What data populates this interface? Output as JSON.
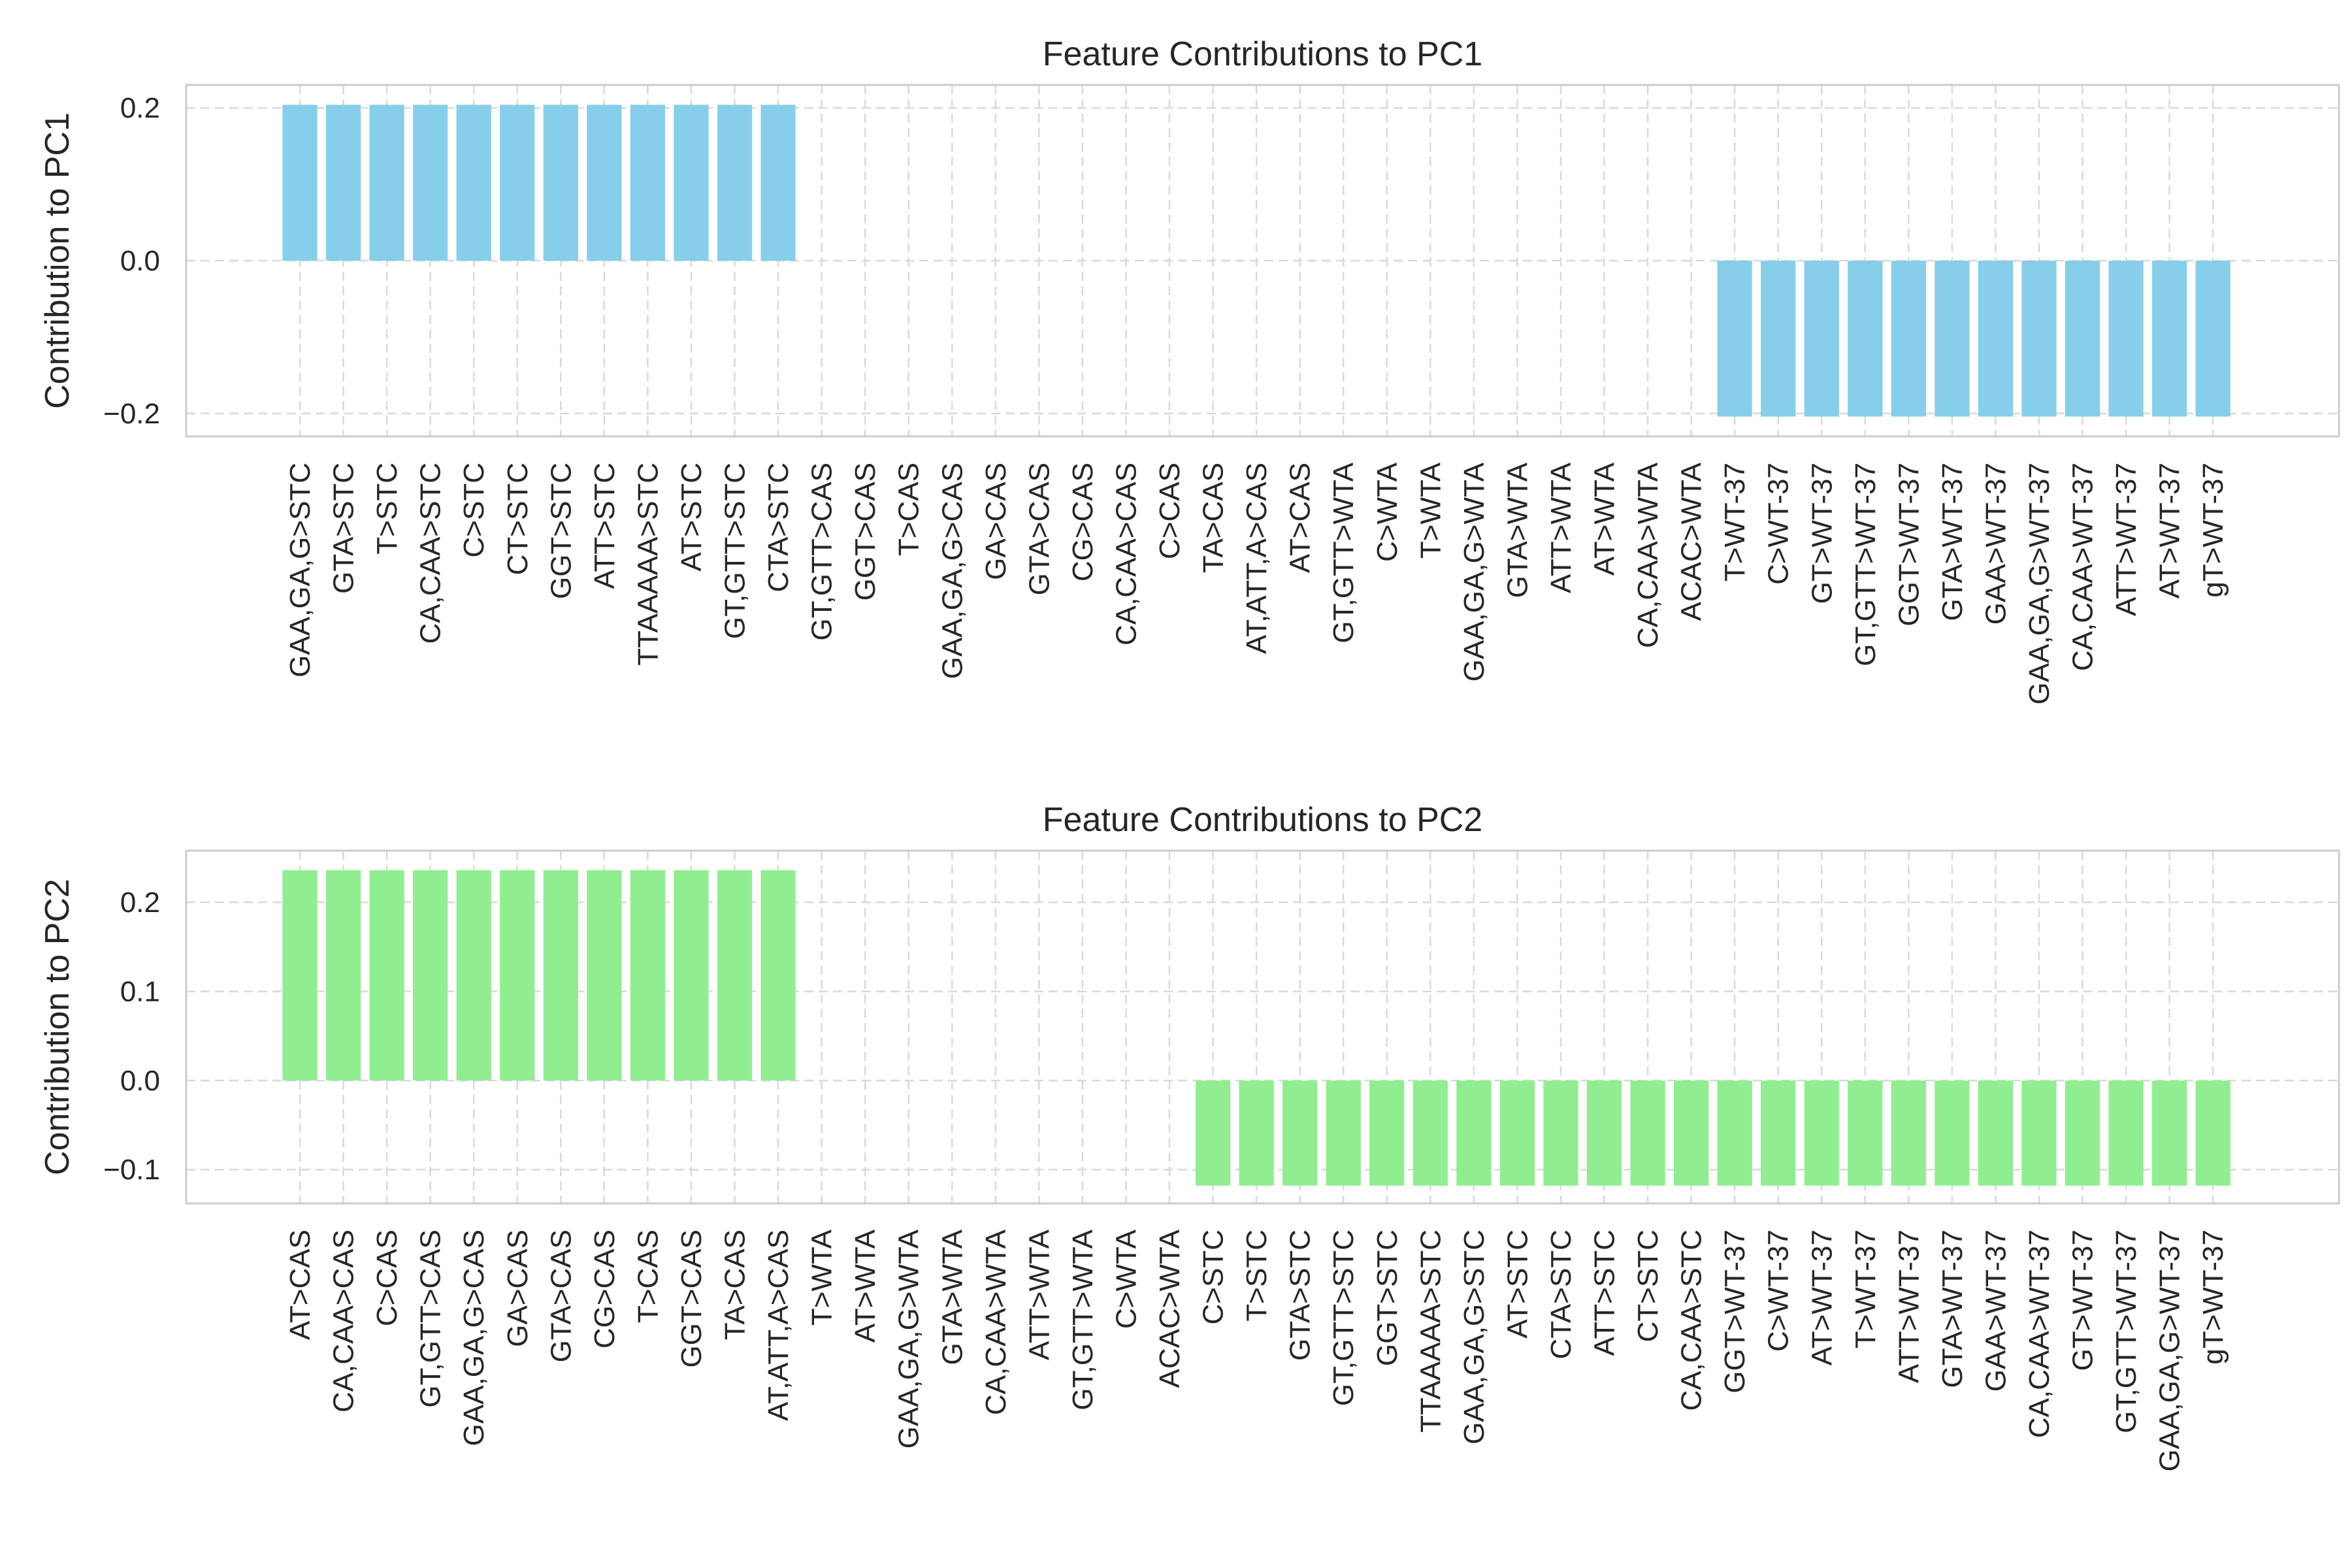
{
  "chart_data": [
    {
      "type": "bar",
      "title": "Feature Contributions to PC1",
      "xlabel": "",
      "ylabel": "Contribution to PC1",
      "ylim": [
        -0.23,
        0.23
      ],
      "yticks": [
        0.2,
        0.0,
        -0.2
      ],
      "ytick_labels": [
        "0.2",
        "0.0",
        "−0.2"
      ],
      "grid": true,
      "bar_color": "#87CEEB",
      "categories": [
        "GAA,GA,G>STC",
        "GTA>STC",
        "T>STC",
        "CA,CAA>STC",
        "C>STC",
        "CT>STC",
        "GGT>STC",
        "ATT>STC",
        "TTAAAAA>STC",
        "AT>STC",
        "GT,GTT>STC",
        "CTA>STC",
        "GT,GTT>CAS",
        "GGT>CAS",
        "T>CAS",
        "GAA,GA,G>CAS",
        "GA>CAS",
        "GTA>CAS",
        "CG>CAS",
        "CA,CAA>CAS",
        "C>CAS",
        "TA>CAS",
        "AT,ATT,A>CAS",
        "AT>CAS",
        "GT,GTT>WTA",
        "C>WTA",
        "T>WTA",
        "GAA,GA,G>WTA",
        "GTA>WTA",
        "ATT>WTA",
        "AT>WTA",
        "CA,CAA>WTA",
        "ACAC>WTA",
        "T>WT-37",
        "C>WT-37",
        "GT>WT-37",
        "GT,GTT>WT-37",
        "GGT>WT-37",
        "GTA>WT-37",
        "GAA>WT-37",
        "GAA,GA,G>WT-37",
        "CA,CAA>WT-37",
        "ATT>WT-37",
        "AT>WT-37",
        "gT>WT-37"
      ],
      "values": [
        0.204,
        0.204,
        0.204,
        0.204,
        0.204,
        0.204,
        0.204,
        0.204,
        0.204,
        0.204,
        0.204,
        0.204,
        0,
        0,
        0,
        0,
        0,
        0,
        0,
        0,
        0,
        0,
        0,
        0,
        0,
        0,
        0,
        0,
        0,
        0,
        0,
        0,
        0,
        -0.204,
        -0.204,
        -0.204,
        -0.204,
        -0.204,
        -0.204,
        -0.204,
        -0.204,
        -0.204,
        -0.204,
        -0.204,
        -0.204
      ]
    },
    {
      "type": "bar",
      "title": "Feature Contributions to PC2",
      "xlabel": "",
      "ylabel": "Contribution to PC2",
      "ylim": [
        -0.138,
        0.258
      ],
      "yticks": [
        0.2,
        0.1,
        0.0,
        -0.1
      ],
      "ytick_labels": [
        "0.2",
        "0.1",
        "0.0",
        "−0.1"
      ],
      "grid": true,
      "bar_color": "#90EE90",
      "categories": [
        "AT>CAS",
        "CA,CAA>CAS",
        "C>CAS",
        "GT,GTT>CAS",
        "GAA,GA,G>CAS",
        "GA>CAS",
        "GTA>CAS",
        "CG>CAS",
        "T>CAS",
        "GGT>CAS",
        "TA>CAS",
        "AT,ATT,A>CAS",
        "T>WTA",
        "AT>WTA",
        "GAA,GA,G>WTA",
        "GTA>WTA",
        "CA,CAA>WTA",
        "ATT>WTA",
        "GT,GTT>WTA",
        "C>WTA",
        "ACAC>WTA",
        "C>STC",
        "T>STC",
        "GTA>STC",
        "GT,GTT>STC",
        "GGT>STC",
        "TTAAAAA>STC",
        "GAA,GA,G>STC",
        "AT>STC",
        "CTA>STC",
        "ATT>STC",
        "CT>STC",
        "CA,CAA>STC",
        "GGT>WT-37",
        "C>WT-37",
        "AT>WT-37",
        "T>WT-37",
        "ATT>WT-37",
        "GTA>WT-37",
        "GAA>WT-37",
        "CA,CAA>WT-37",
        "GT>WT-37",
        "GT,GTT>WT-37",
        "GAA,GA,G>WT-37",
        "gT>WT-37"
      ],
      "values": [
        0.236,
        0.236,
        0.236,
        0.236,
        0.236,
        0.236,
        0.236,
        0.236,
        0.236,
        0.236,
        0.236,
        0.236,
        0,
        0,
        0,
        0,
        0,
        0,
        0,
        0,
        0,
        -0.118,
        -0.118,
        -0.118,
        -0.118,
        -0.118,
        -0.118,
        -0.118,
        -0.118,
        -0.118,
        -0.118,
        -0.118,
        -0.118,
        -0.118,
        -0.118,
        -0.118,
        -0.118,
        -0.118,
        -0.118,
        -0.118,
        -0.118,
        -0.118,
        -0.118,
        -0.118,
        -0.118
      ]
    }
  ]
}
